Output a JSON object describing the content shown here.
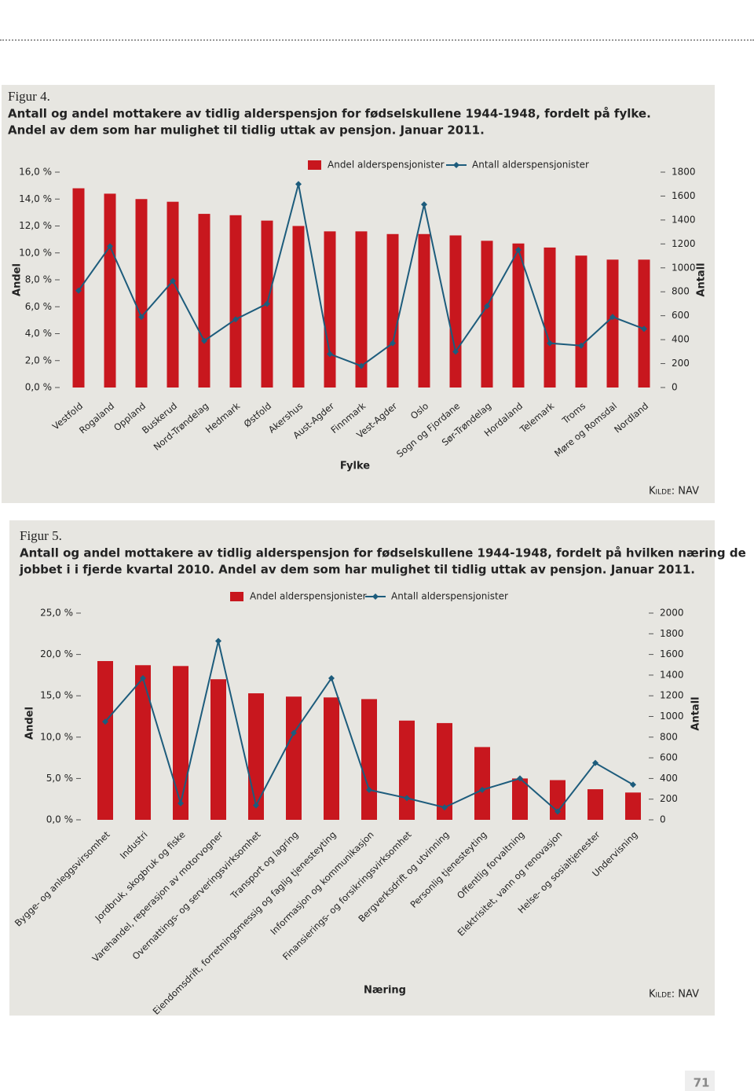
{
  "page_number": "71",
  "chart_data": [
    {
      "type": "bar",
      "figure_label": "Figur 4.",
      "title": [
        "Antall og andel mottakere av tidlig alderspensjon for fødselskullene 1944-1948, fordelt på fylke.",
        "Andel av dem som har mulighet til tidlig uttak av pensjon. Januar 2011."
      ],
      "x_label": "Fylke",
      "y_label": "Andel",
      "y2_label": "Antall",
      "source": "Kilde: NAV",
      "legend": "top",
      "categories": [
        "Vestfold",
        "Rogaland",
        "Oppland",
        "Buskerud",
        "Nord-Trøndelag",
        "Hedmark",
        "Østfold",
        "Akershus",
        "Aust-Agder",
        "Finnmark",
        "Vest-Agder",
        "Oslo",
        "Sogn og Fjordane",
        "Sør-Trøndelag",
        "Hordaland",
        "Telemark",
        "Troms",
        "Møre og Romsdal",
        "Nordland"
      ],
      "series": [
        {
          "name": "Andel alderspensjonister",
          "color": "#c8171e",
          "values": [
            14.8,
            14.4,
            14.0,
            13.8,
            12.9,
            12.8,
            12.4,
            12.0,
            11.6,
            11.6,
            11.4,
            11.4,
            11.3,
            10.9,
            10.7,
            10.4,
            9.8,
            9.5,
            9.5
          ]
        },
        {
          "name": "Antall alderspensjonister",
          "color": "#1d5c7c",
          "axis": "y2",
          "values": [
            810,
            1180,
            590,
            890,
            390,
            570,
            700,
            1700,
            280,
            180,
            370,
            1530,
            300,
            680,
            1150,
            370,
            350,
            590,
            490
          ]
        }
      ],
      "ylim": [
        0,
        16
      ],
      "yticks": [
        {
          "value": 0,
          "label": "0,0 %"
        },
        {
          "value": 2,
          "label": "2,0 %"
        },
        {
          "value": 4,
          "label": "4,0 %"
        },
        {
          "value": 6,
          "label": "6,0 %"
        },
        {
          "value": 8,
          "label": "8,0 %"
        },
        {
          "value": 10,
          "label": "10,0 %"
        },
        {
          "value": 12,
          "label": "12,0 %"
        },
        {
          "value": 14,
          "label": "14,0 %"
        },
        {
          "value": 16,
          "label": "16,0 %"
        }
      ],
      "y2lim": [
        0,
        1800
      ],
      "y2ticks": [
        0,
        200,
        400,
        600,
        800,
        1000,
        1200,
        1400,
        1600,
        1800
      ]
    },
    {
      "type": "bar",
      "figure_label": "Figur 5.",
      "title": [
        "Antall og andel mottakere av tidlig alderspensjon for fødselskullene 1944-1948, fordelt på hvilken næring de",
        "jobbet i i fjerde kvartal 2010. Andel av dem som har mulighet til tidlig uttak av pensjon. Januar 2011."
      ],
      "x_label": "Næring",
      "y_label": "Andel",
      "y2_label": "Antall",
      "source": "Kilde: NAV",
      "legend": "top",
      "categories": [
        "Bygge- og anleggsvirsomhet",
        "Industri",
        "Jordbruk, skogbruk og fiske",
        "Varehandel, reperasjon av motorvogner",
        "Overnattings- og serveringsvirksomhet",
        "Transport og lagring",
        "Eiendomsdrift, forretningsmessig og faglig tjenesteyting",
        "Informasjon og kommunikasjon",
        "Finansierings- og forsikringsvirksomhet",
        "Bergverksdrift og utvinning",
        "Personlig tjenesteyting",
        "Offentlig forvaltning",
        "Elektrisitet, vann og renovasjon",
        "Helse- og sosialtjenester",
        "Undervisning"
      ],
      "series": [
        {
          "name": "Andel alderspensjonister",
          "color": "#c8171e",
          "values": [
            19.2,
            18.7,
            18.6,
            17.0,
            15.3,
            14.9,
            14.8,
            14.6,
            12.0,
            11.7,
            8.8,
            5.0,
            4.8,
            3.7,
            3.3
          ]
        },
        {
          "name": "Antall alderspensjonister",
          "color": "#1d5c7c",
          "axis": "y2",
          "values": [
            950,
            1370,
            160,
            1730,
            140,
            840,
            1370,
            290,
            210,
            120,
            290,
            400,
            80,
            550,
            340
          ]
        }
      ],
      "ylim": [
        0,
        25
      ],
      "yticks": [
        {
          "value": 0,
          "label": "0,0 %"
        },
        {
          "value": 5,
          "label": "5,0 %"
        },
        {
          "value": 10,
          "label": "10,0 %"
        },
        {
          "value": 15,
          "label": "15,0 %"
        },
        {
          "value": 20,
          "label": "20,0 %"
        },
        {
          "value": 25,
          "label": "25,0 %"
        }
      ],
      "y2lim": [
        0,
        2000
      ],
      "y2ticks": [
        0,
        200,
        400,
        600,
        800,
        1000,
        1200,
        1400,
        1600,
        1800,
        2000
      ]
    }
  ]
}
